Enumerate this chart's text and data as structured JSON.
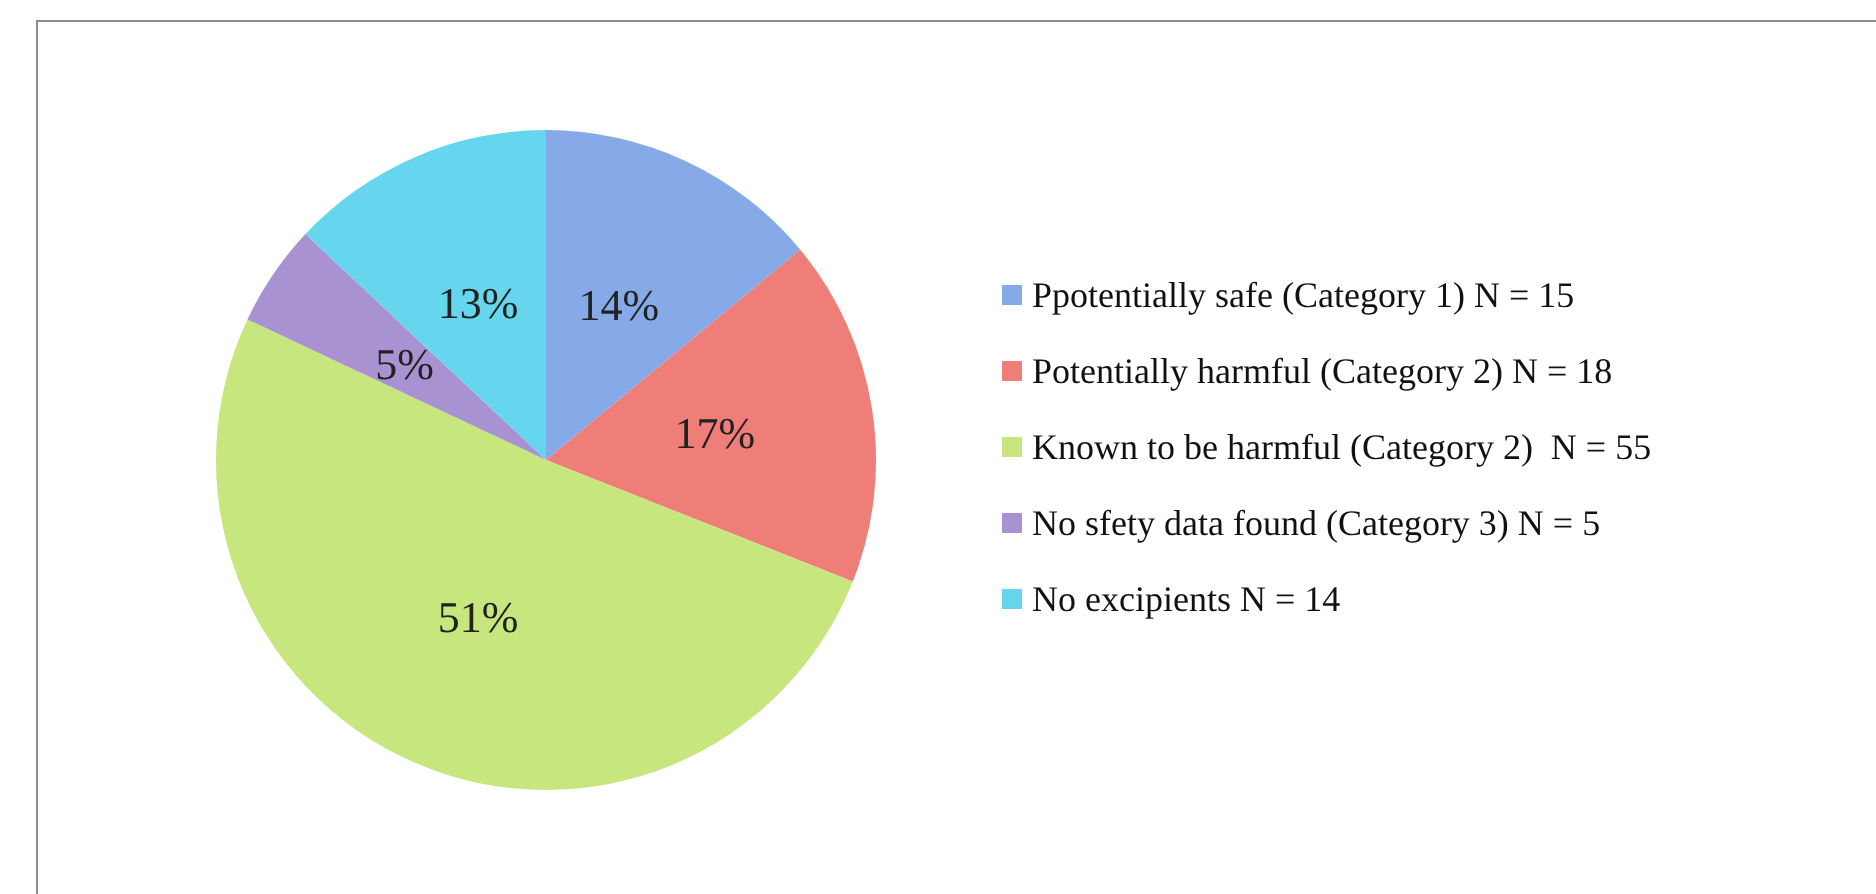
{
  "chart_data": {
    "type": "pie",
    "categories": [
      "Ppotentially safe (Category 1) N = 15",
      "Potentially harmful (Category 2) N = 18",
      "Known to be harmful (Category 2)  N = 55",
      "No sfety data found (Category 3) N = 5",
      "No excipients N = 14"
    ],
    "values": [
      14,
      17,
      51,
      5,
      13
    ],
    "value_labels": [
      "14%",
      "17%",
      "51%",
      "5%",
      "13%"
    ],
    "colors": [
      "#86a9e8",
      "#ef7e78",
      "#c8e67e",
      "#a892d2",
      "#66d5ee"
    ],
    "legend": "right"
  }
}
